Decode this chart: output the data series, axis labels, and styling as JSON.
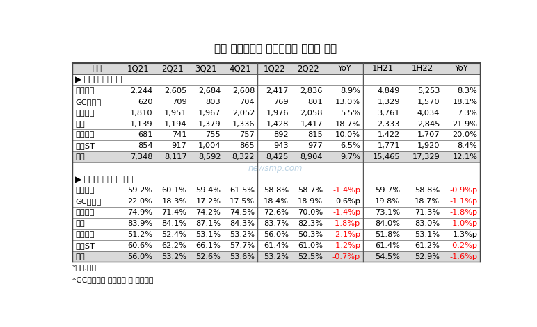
{
  "title": "주요 상위제약사 전문의약품 매출액 추이",
  "headers": [
    "사명",
    "1Q21",
    "2Q21",
    "3Q21",
    "4Q21",
    "1Q22",
    "2Q22",
    "YoY",
    "1H21",
    "1H22",
    "YoY"
  ],
  "section1_label": "▶ 전문의약품 매출액",
  "section1_rows": [
    [
      "유한양행",
      "2,244",
      "2,605",
      "2,684",
      "2,608",
      "2,417",
      "2,836",
      "8.9%",
      "4,849",
      "5,253",
      "8.3%"
    ],
    [
      "GC녹십자",
      "620",
      "709",
      "803",
      "704",
      "769",
      "801",
      "13.0%",
      "1,329",
      "1,570",
      "18.1%"
    ],
    [
      "대웅제약",
      "1,810",
      "1,951",
      "1,967",
      "2,052",
      "1,976",
      "2,058",
      "5.5%",
      "3,761",
      "4,034",
      "7.3%"
    ],
    [
      "보령",
      "1,139",
      "1,194",
      "1,379",
      "1,336",
      "1,428",
      "1,417",
      "18.7%",
      "2,333",
      "2,845",
      "21.9%"
    ],
    [
      "일동제약",
      "681",
      "741",
      "755",
      "757",
      "892",
      "815",
      "10.0%",
      "1,422",
      "1,707",
      "20.0%"
    ],
    [
      "동아ST",
      "854",
      "917",
      "1,004",
      "865",
      "943",
      "977",
      "6.5%",
      "1,771",
      "1,920",
      "8.4%"
    ]
  ],
  "section1_total": [
    "소계",
    "7,348",
    "8,117",
    "8,592",
    "8,322",
    "8,425",
    "8,904",
    "9.7%",
    "15,465",
    "17,329",
    "12.1%"
  ],
  "section2_label": "▶ 전문의약품 매출 비중",
  "section2_rows": [
    [
      "유한양행",
      "59.2%",
      "60.1%",
      "59.4%",
      "61.5%",
      "58.8%",
      "58.7%",
      "-1.4%p",
      "59.7%",
      "58.8%",
      "-0.9%p"
    ],
    [
      "GC녹십자",
      "22.0%",
      "18.3%",
      "17.2%",
      "17.5%",
      "18.4%",
      "18.9%",
      "0.6%p",
      "19.8%",
      "18.7%",
      "-1.1%p"
    ],
    [
      "대웅제약",
      "74.9%",
      "71.4%",
      "74.2%",
      "74.5%",
      "72.6%",
      "70.0%",
      "-1.4%p",
      "73.1%",
      "71.3%",
      "-1.8%p"
    ],
    [
      "보령",
      "83.9%",
      "84.1%",
      "87.1%",
      "84.3%",
      "83.7%",
      "82.3%",
      "-1.8%p",
      "84.0%",
      "83.0%",
      "-1.0%p"
    ],
    [
      "일동제약",
      "51.2%",
      "52.4%",
      "53.1%",
      "53.2%",
      "56.0%",
      "50.3%",
      "-2.1%p",
      "51.8%",
      "53.1%",
      "1.3%p"
    ],
    [
      "동아ST",
      "60.6%",
      "62.2%",
      "66.1%",
      "57.7%",
      "61.4%",
      "61.0%",
      "-1.2%p",
      "61.4%",
      "61.2%",
      "-0.2%p"
    ]
  ],
  "section2_total": [
    "평균",
    "56.0%",
    "53.2%",
    "52.6%",
    "53.6%",
    "53.2%",
    "52.5%",
    "-0.7%p",
    "54.5%",
    "52.9%",
    "-1.6%p"
  ],
  "footnotes": [
    "*단위:억원",
    "*GC녹십자는 혈액제제 및 백신제외"
  ],
  "col_widths_ratio": [
    1.3,
    0.9,
    0.9,
    0.9,
    0.9,
    0.9,
    0.9,
    1.0,
    1.05,
    1.05,
    1.0
  ],
  "header_bg": "#d9d9d9",
  "total_bg": "#d9d9d9",
  "table_bg": "#ffffff",
  "text_color": "#000000",
  "negative_color": "#ff0000",
  "positive_color": "#000000",
  "watermark": "newsmp.com",
  "watermark_color": "#b0cce0"
}
